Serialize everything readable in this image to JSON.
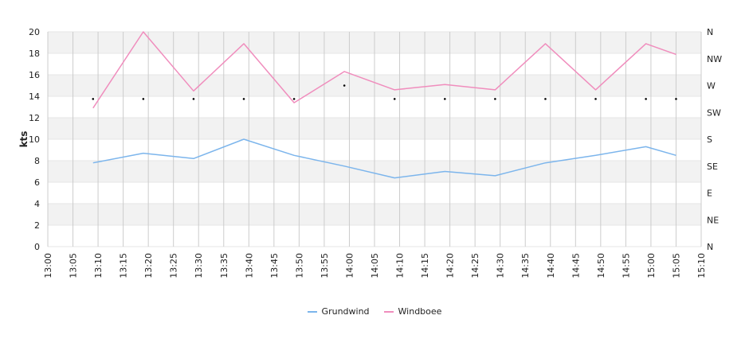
{
  "chart_data": {
    "type": "line",
    "ylabel": "kts",
    "ylim": [
      0,
      20
    ],
    "y_ticks": [
      "0",
      "2",
      "4",
      "6",
      "8",
      "10",
      "12",
      "14",
      "16",
      "18",
      "20"
    ],
    "x_ticks": [
      "13:00",
      "13:05",
      "13:10",
      "13:15",
      "13:20",
      "13:25",
      "13:30",
      "13:35",
      "13:40",
      "13:45",
      "13:50",
      "13:55",
      "14:00",
      "14:05",
      "14:10",
      "14:15",
      "14:20",
      "14:25",
      "14:30",
      "14:35",
      "14:40",
      "14:45",
      "14:50",
      "14:55",
      "15:00",
      "15:05",
      "15:10"
    ],
    "x_range": [
      "13:00",
      "15:10"
    ],
    "direction_axis": [
      "N",
      "NE",
      "E",
      "SE",
      "S",
      "SW",
      "W",
      "NW",
      "N"
    ],
    "x": [
      "13:09",
      "13:19",
      "13:29",
      "13:39",
      "13:49",
      "13:59",
      "14:09",
      "14:19",
      "14:29",
      "14:39",
      "14:49",
      "14:59",
      "15:05"
    ],
    "series": [
      {
        "name": "Grundwind",
        "color": "#7cb5ec",
        "values": [
          7.8,
          8.7,
          8.2,
          10.0,
          8.5,
          7.5,
          6.4,
          7.0,
          6.6,
          7.8,
          8.5,
          9.3,
          8.5
        ]
      },
      {
        "name": "Windboee",
        "color": "#f08dbd",
        "values": [
          12.9,
          20.0,
          14.5,
          18.9,
          13.4,
          16.3,
          14.6,
          15.1,
          14.6,
          18.9,
          14.6,
          18.9,
          17.9
        ]
      }
    ],
    "direction_points": [
      {
        "x": "13:09",
        "dir_deg": 247.5
      },
      {
        "x": "13:19",
        "dir_deg": 247.5
      },
      {
        "x": "13:29",
        "dir_deg": 247.5
      },
      {
        "x": "13:39",
        "dir_deg": 247.5
      },
      {
        "x": "13:49",
        "dir_deg": 247.5
      },
      {
        "x": "13:59",
        "dir_deg": 270
      },
      {
        "x": "14:09",
        "dir_deg": 247.5
      },
      {
        "x": "14:19",
        "dir_deg": 247.5
      },
      {
        "x": "14:29",
        "dir_deg": 247.5
      },
      {
        "x": "14:39",
        "dir_deg": 247.5
      },
      {
        "x": "14:49",
        "dir_deg": 247.5
      },
      {
        "x": "14:59",
        "dir_deg": 247.5
      },
      {
        "x": "15:05",
        "dir_deg": 247.5
      }
    ],
    "grid": true,
    "legend_position": "bottom"
  }
}
